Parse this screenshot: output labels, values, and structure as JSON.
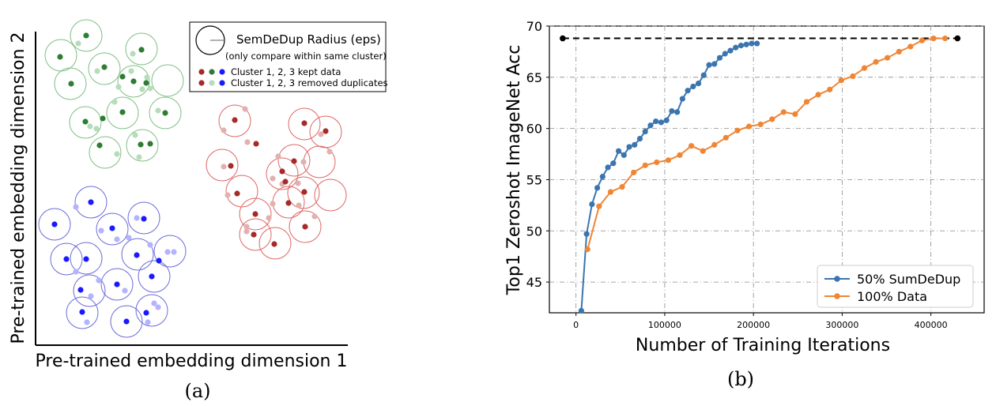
{
  "chart_data": [
    {
      "type": "scatter",
      "caption": "(a)",
      "xlabel": "Pre-trained embedding dimension 1",
      "ylabel": "Pre-trained embedding dimension 2",
      "legend": {
        "placement": "top-right",
        "radius_label": "SemDeDup Radius (eps)",
        "radius_note": "(only compare within same cluster)",
        "kept_label": "Cluster 1, 2, 3 kept data",
        "removed_label": "Cluster 1, 2, 3 removed duplicates"
      },
      "clusters": [
        {
          "id": 1,
          "kept_color": "#2e7d32",
          "removed_color": "#b7dcb9",
          "circle_color": "#7fbf85",
          "kept": [
            [
              109,
              45
            ],
            [
              179,
              63
            ],
            [
              132,
              85
            ],
            [
              169,
              103
            ],
            [
              76,
              72
            ],
            [
              90,
              106
            ],
            [
              155,
              97
            ],
            [
              185,
              105
            ],
            [
              209,
              143
            ],
            [
              155,
              142
            ],
            [
              130,
              150
            ],
            [
              108,
              154
            ],
            [
              126,
              184
            ],
            [
              178,
              183
            ],
            [
              190,
              182
            ]
          ],
          "removed": [
            [
              99,
              55
            ],
            [
              168,
              68
            ],
            [
              123,
              90
            ],
            [
              166,
              90
            ],
            [
              186,
              98
            ],
            [
              150,
              110
            ],
            [
              180,
              113
            ],
            [
              190,
              112
            ],
            [
              145,
              129
            ],
            [
              200,
              140
            ],
            [
              114,
              160
            ],
            [
              122,
              163
            ],
            [
              171,
              171
            ],
            [
              148,
              195
            ],
            [
              176,
              199
            ]
          ]
        },
        {
          "id": 2,
          "kept_color": "#a52a2a",
          "removed_color": "#e3b0b0",
          "circle_color": "#e06666",
          "kept": [
            [
              297,
              152
            ],
            [
              385,
              156
            ],
            [
              324,
              182
            ],
            [
              412,
              166
            ],
            [
              292,
              210
            ],
            [
              372,
              204
            ],
            [
              357,
              217
            ],
            [
              361,
              230
            ],
            [
              300,
              245
            ],
            [
              385,
              243
            ],
            [
              323,
              271
            ],
            [
              365,
              257
            ],
            [
              386,
              287
            ],
            [
              321,
              297
            ],
            [
              347,
              309
            ]
          ],
          "removed": [
            [
              310,
              138
            ],
            [
              283,
              165
            ],
            [
              313,
              180
            ],
            [
              406,
              170
            ],
            [
              417,
              192
            ],
            [
              352,
              198
            ],
            [
              384,
              205
            ],
            [
              283,
              211
            ],
            [
              345,
              226
            ],
            [
              357,
              233
            ],
            [
              377,
              232
            ],
            [
              288,
              247
            ],
            [
              345,
              258
            ],
            [
              378,
              260
            ],
            [
              340,
              276
            ],
            [
              312,
              287
            ],
            [
              398,
              274
            ],
            [
              312,
              293
            ]
          ]
        },
        {
          "id": 3,
          "kept_color": "#1a1aff",
          "removed_color": "#b3b3ff",
          "circle_color": "#6b6bdb",
          "kept": [
            [
              115,
              256
            ],
            [
              69,
              284
            ],
            [
              182,
              277
            ],
            [
              142,
              289
            ],
            [
              173,
              323
            ],
            [
              84,
              328
            ],
            [
              109,
              328
            ],
            [
              201,
              330
            ],
            [
              102,
              367
            ],
            [
              148,
              360
            ],
            [
              192,
              350
            ],
            [
              104,
              395
            ],
            [
              160,
              407
            ],
            [
              185,
              396
            ]
          ],
          "removed": [
            [
              96,
              262
            ],
            [
              128,
              292
            ],
            [
              173,
              276
            ],
            [
              163,
              301
            ],
            [
              148,
              303
            ],
            [
              190,
              310
            ],
            [
              212,
              319
            ],
            [
              220,
              319
            ],
            [
              96,
              344
            ],
            [
              125,
              355
            ],
            [
              158,
              368
            ],
            [
              115,
              375
            ],
            [
              195,
              384
            ],
            [
              200,
              389
            ],
            [
              110,
              408
            ],
            [
              187,
              408
            ]
          ]
        }
      ],
      "radius_circles": [
        [
          109,
          45
        ],
        [
          77,
          70
        ],
        [
          179,
          62
        ],
        [
          132,
          87
        ],
        [
          169,
          103
        ],
        [
          89,
          106
        ],
        [
          212,
          102
        ],
        [
          155,
          143
        ],
        [
          209,
          143
        ],
        [
          108,
          155
        ],
        [
          133,
          193
        ],
        [
          180,
          184
        ],
        [
          297,
          153
        ],
        [
          385,
          157
        ],
        [
          412,
          167
        ],
        [
          281,
          209
        ],
        [
          306,
          242
        ],
        [
          372,
          203
        ],
        [
          357,
          220
        ],
        [
          404,
          205
        ],
        [
          384,
          244
        ],
        [
          418,
          247
        ],
        [
          323,
          271
        ],
        [
          365,
          256
        ],
        [
          386,
          287
        ],
        [
          323,
          297
        ],
        [
          348,
          308
        ],
        [
          69,
          284
        ],
        [
          115,
          256
        ],
        [
          182,
          276
        ],
        [
          142,
          290
        ],
        [
          174,
          322
        ],
        [
          84,
          328
        ],
        [
          109,
          327
        ],
        [
          215,
          318
        ],
        [
          195,
          350
        ],
        [
          148,
          360
        ],
        [
          113,
          368
        ],
        [
          104,
          396
        ],
        [
          160,
          407
        ],
        [
          192,
          393
        ]
      ]
    },
    {
      "type": "line",
      "caption": "(b)",
      "xlabel": "Number of Training Iterations",
      "ylabel": "Top1 Zeroshot ImageNet Acc",
      "xlim": [
        -30000,
        460000
      ],
      "ylim": [
        42,
        70
      ],
      "xticks": [
        0,
        100000,
        200000,
        300000,
        400000
      ],
      "yticks": [
        45,
        50,
        55,
        60,
        65,
        70
      ],
      "grid": true,
      "legend_placement": "bottom-right",
      "reference_line": {
        "y": 68.8,
        "x_start": -15000,
        "x_end": 430000,
        "color": "#000000",
        "style": "dashed"
      },
      "series": [
        {
          "name": "50% SumDeDup",
          "color": "#3b75af",
          "x": [
            6000,
            12000,
            18000,
            24000,
            30000,
            36000,
            42000,
            48000,
            54000,
            60000,
            66000,
            72000,
            78000,
            84000,
            90000,
            96000,
            102000,
            108000,
            114000,
            120000,
            126000,
            132000,
            138000,
            144000,
            150000,
            156000,
            162000,
            168000,
            174000,
            180000,
            186000,
            192000,
            198000,
            204000
          ],
          "y": [
            42.2,
            49.7,
            52.6,
            54.2,
            55.3,
            56.2,
            56.6,
            57.8,
            57.4,
            58.2,
            58.4,
            59.0,
            59.7,
            60.3,
            60.7,
            60.6,
            60.8,
            61.7,
            61.6,
            62.9,
            63.7,
            64.1,
            64.4,
            65.2,
            66.2,
            66.3,
            66.9,
            67.3,
            67.6,
            67.9,
            68.1,
            68.2,
            68.3,
            68.3
          ]
        },
        {
          "name": "100% Data",
          "color": "#ef8636",
          "x": [
            13000,
            26000,
            39000,
            52000,
            65000,
            78000,
            91000,
            104000,
            117000,
            130000,
            143000,
            156000,
            169000,
            182000,
            195000,
            208000,
            221000,
            234000,
            247000,
            260000,
            273000,
            286000,
            299000,
            312000,
            325000,
            338000,
            351000,
            364000,
            377000,
            390000,
            403000,
            416000
          ],
          "y": [
            48.2,
            52.4,
            53.8,
            54.3,
            55.7,
            56.4,
            56.7,
            56.9,
            57.4,
            58.3,
            57.8,
            58.4,
            59.1,
            59.8,
            60.2,
            60.4,
            60.9,
            61.6,
            61.4,
            62.6,
            63.3,
            63.8,
            64.7,
            65.1,
            65.9,
            66.5,
            66.9,
            67.5,
            68.0,
            68.6,
            68.8,
            68.8
          ]
        }
      ]
    }
  ]
}
